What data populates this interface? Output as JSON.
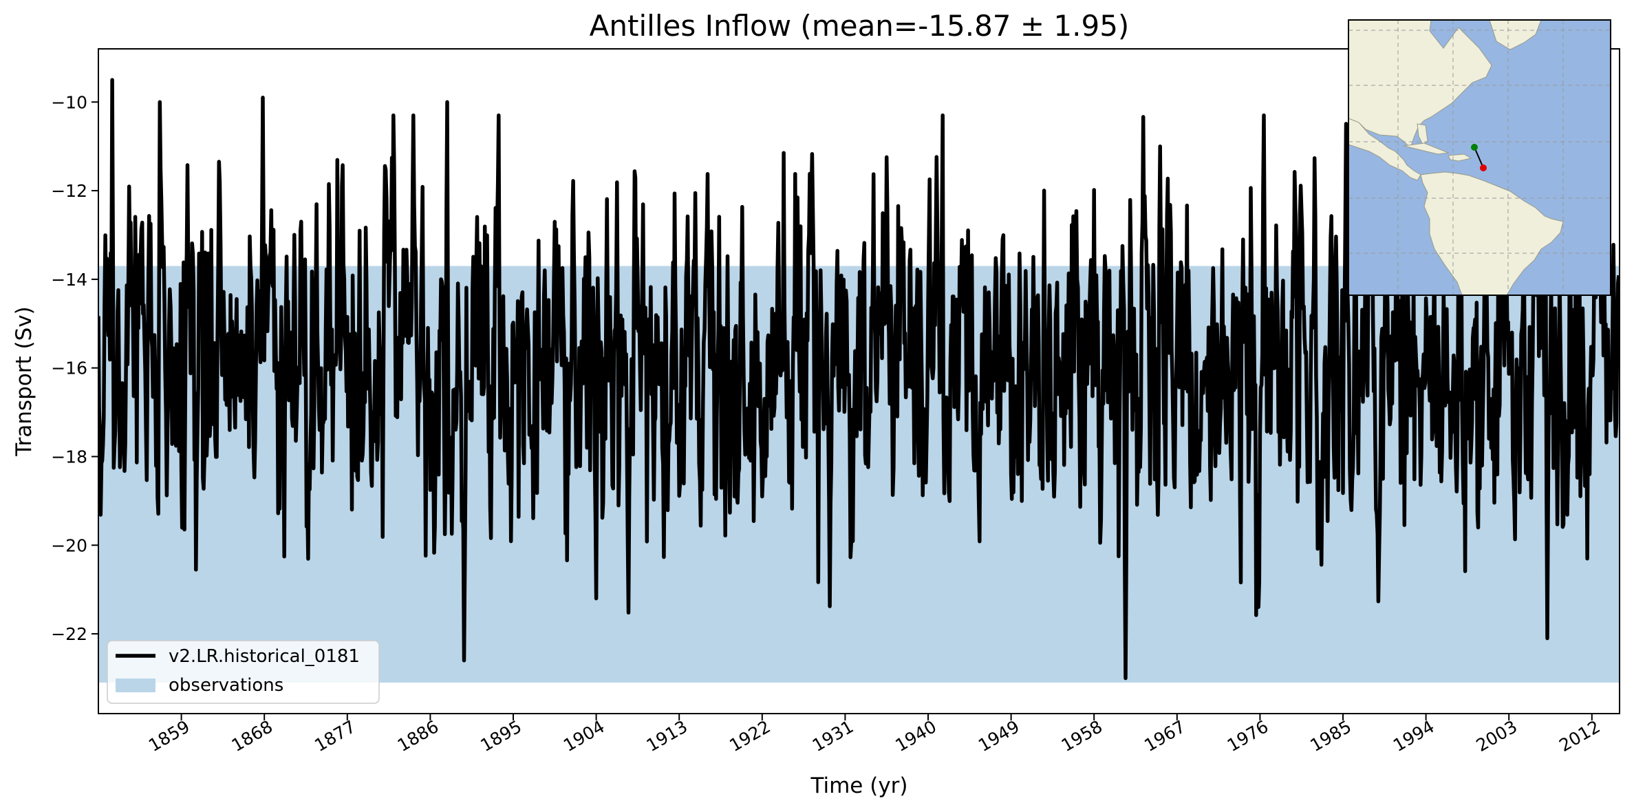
{
  "chart_data": {
    "type": "line",
    "title": "Antilles Inflow (mean=-15.87 ± 1.95)",
    "xlabel": "Time (yr)",
    "ylabel": "Transport (Sv)",
    "xlim": [
      1850,
      2015
    ],
    "ylim": [
      -23.8,
      -8.8
    ],
    "xticks": [
      1859,
      1868,
      1877,
      1886,
      1895,
      1904,
      1913,
      1922,
      1931,
      1940,
      1949,
      1958,
      1967,
      1976,
      1985,
      1994,
      2003,
      2012
    ],
    "yticks": [
      -22,
      -20,
      -18,
      -16,
      -14,
      -12,
      -10
    ],
    "ytick_labels": [
      "−22",
      "−20",
      "−18",
      "−16",
      "−14",
      "−12",
      "−10"
    ],
    "observation_band": {
      "y_low": -23.1,
      "y_high": -13.7,
      "color": "#bad5e8"
    },
    "series": [
      {
        "name": "v2.LR.historical_0181",
        "color": "#000000",
        "approx_mean": -15.87,
        "approx_std": 1.95,
        "note": "monthly series, approx. 1980 points; a few prominent values read from the figure are listed",
        "notable_points": [
          {
            "x": 1851.5,
            "y": -9.5
          },
          {
            "x": 1856.7,
            "y": -10.0
          },
          {
            "x": 1867.8,
            "y": -9.9
          },
          {
            "x": 1887.8,
            "y": -10.0
          },
          {
            "x": 1904.0,
            "y": -21.2
          },
          {
            "x": 1961.4,
            "y": -23.0
          },
          {
            "x": 1965.2,
            "y": -11.0
          },
          {
            "x": 2007.2,
            "y": -22.1
          }
        ]
      }
    ],
    "legend": {
      "position": "lower-left",
      "entries": [
        {
          "label": "v2.LR.historical_0181",
          "kind": "line",
          "color": "#000000"
        },
        {
          "label": "observations",
          "kind": "patch",
          "color": "#bad5e8"
        }
      ]
    },
    "inset_map": {
      "position": "top-right",
      "region": "Caribbean / Atlantic",
      "section_start": {
        "lat": 13.0,
        "lon": -62.3,
        "color": "#008000"
      },
      "section_end": {
        "lat": 10.5,
        "lon": -61.0,
        "color": "#e00000"
      },
      "ocean_color": "#97b6e1",
      "land_color": "#efefdb"
    }
  }
}
